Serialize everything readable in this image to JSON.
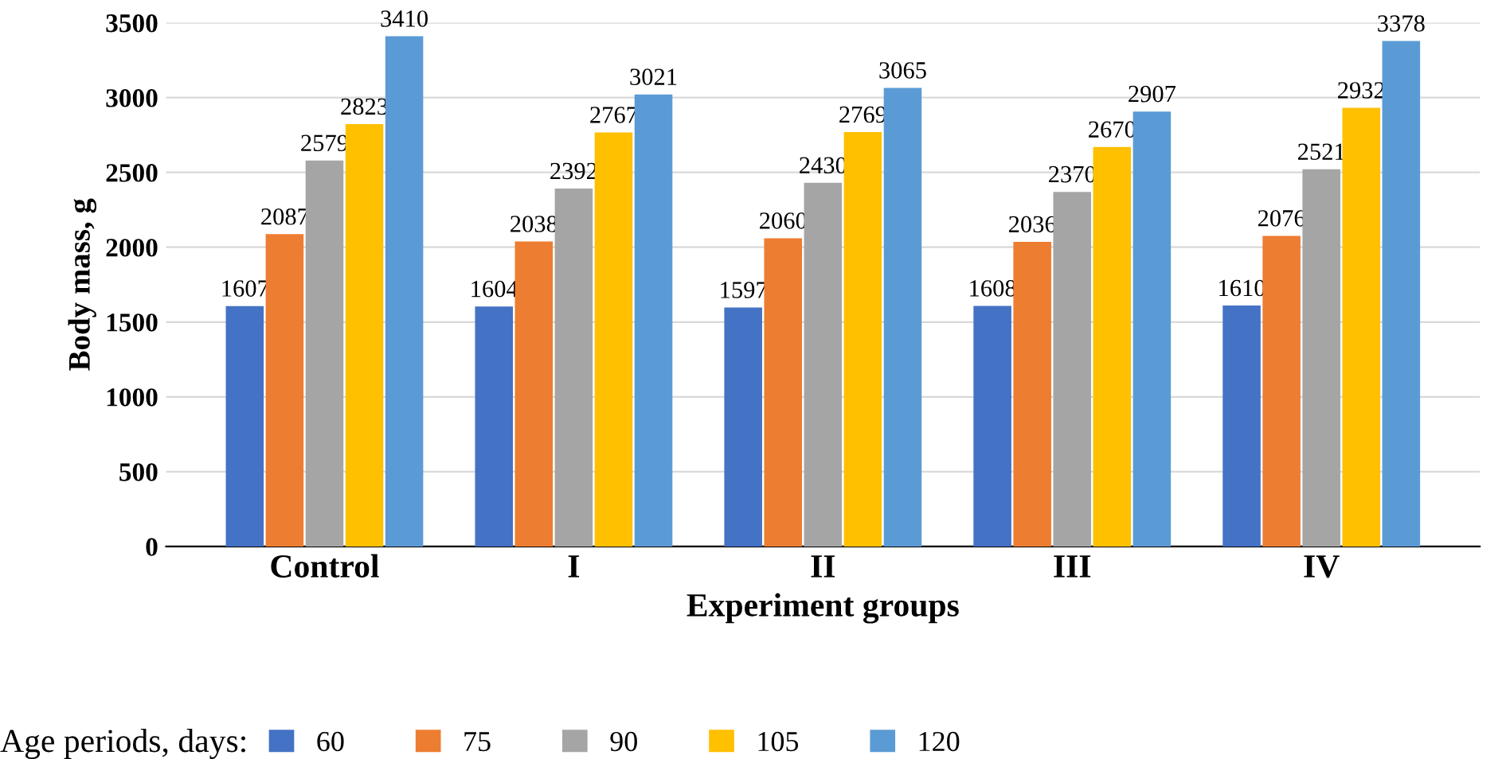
{
  "chart_data": {
    "type": "bar",
    "xlabel": "Experiment groups",
    "ylabel": "Body mass, g",
    "legend_title": "Age periods, days:",
    "categories": [
      "Control",
      "I",
      "II",
      "III",
      "IV"
    ],
    "series": [
      {
        "name": "60",
        "color": "#4472c4",
        "values": [
          1607,
          1604,
          1597,
          1608,
          1610
        ]
      },
      {
        "name": "75",
        "color": "#ed7d31",
        "values": [
          2087,
          2038,
          2060,
          2036,
          2076
        ]
      },
      {
        "name": "90",
        "color": "#a5a5a5",
        "values": [
          2579,
          2392,
          2430,
          2370,
          2521
        ]
      },
      {
        "name": "105",
        "color": "#ffc000",
        "values": [
          2823,
          2767,
          2769,
          2670,
          2932
        ]
      },
      {
        "name": "120",
        "color": "#5b9bd5",
        "values": [
          3410,
          3021,
          3065,
          2907,
          3378
        ]
      }
    ],
    "ylim": [
      0,
      3500
    ],
    "yticks": [
      0,
      500,
      1000,
      1500,
      2000,
      2500,
      3000,
      3500
    ],
    "grid": "y",
    "legend": "bottom",
    "data_labels": true
  }
}
